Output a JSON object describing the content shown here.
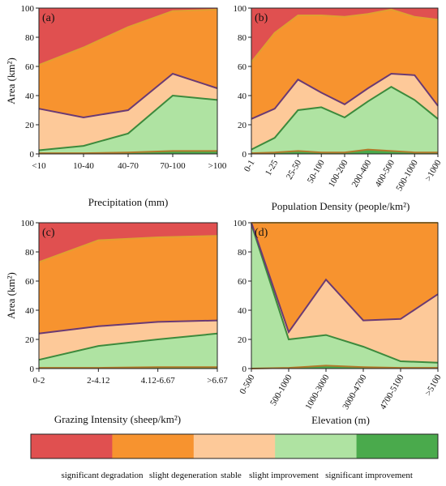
{
  "palette": {
    "significant degradation": "#e05050",
    "slight degeneration": "#f7932f",
    "stable": "#fdc999",
    "slight improvement": "#afe3a2",
    "significant improvement": "#4aaa4c",
    "line_deg": "#e0a030",
    "line_stable_top": "#6a3a74",
    "line_improve_top": "#3c8a3c",
    "line_sig_top": "#b07a2a"
  },
  "legend": {
    "items": [
      "significant degradation",
      "slight degeneration",
      "stable",
      "slight improvement",
      "significant improvement"
    ]
  },
  "chart_data": [
    {
      "type": "area",
      "panel_label": "(a)",
      "xlabel": "Precipitation (mm)",
      "ylabel": "Area (km²)",
      "ylim": [
        0,
        100
      ],
      "yticks": [
        0,
        20,
        40,
        60,
        80,
        100
      ],
      "categories": [
        "<10",
        "10-40",
        "40-70",
        "70-100",
        ">100"
      ],
      "series": [
        {
          "name": "significant improvement",
          "values": [
            0.5,
            0.5,
            1,
            2,
            2
          ]
        },
        {
          "name": "slight improvement",
          "values": [
            2.5,
            5.5,
            14,
            40,
            37
          ]
        },
        {
          "name": "stable",
          "values": [
            31,
            25,
            30,
            55,
            45
          ]
        },
        {
          "name": "slight degeneration",
          "values": [
            61,
            73,
            87,
            98,
            99
          ]
        },
        {
          "name": "significant degradation",
          "values": [
            100,
            100,
            100,
            100,
            100
          ]
        }
      ]
    },
    {
      "type": "area",
      "panel_label": "(b)",
      "xlabel": "Population Density (people/km²)",
      "ylabel": "",
      "ylim": [
        0,
        100
      ],
      "yticks": [
        0,
        20,
        40,
        60,
        80,
        100
      ],
      "categories": [
        "0-1",
        "1-25",
        "25-50",
        "50-100",
        "100-200",
        "200-400",
        "400-500",
        "500-1000",
        ">1000"
      ],
      "series": [
        {
          "name": "significant improvement",
          "values": [
            0.5,
            1,
            2,
            1,
            1,
            3,
            2,
            1,
            1
          ]
        },
        {
          "name": "slight improvement",
          "values": [
            3,
            11,
            30,
            32,
            25,
            36,
            46,
            37,
            24
          ]
        },
        {
          "name": "stable",
          "values": [
            24,
            31,
            51,
            42,
            34,
            45,
            55,
            54,
            33
          ]
        },
        {
          "name": "slight degeneration",
          "values": [
            63,
            83,
            95,
            95,
            94,
            96,
            99,
            94,
            92
          ]
        },
        {
          "name": "significant degradation",
          "values": [
            100,
            100,
            100,
            100,
            100,
            100,
            100,
            100,
            100
          ]
        }
      ]
    },
    {
      "type": "area",
      "panel_label": "(c)",
      "xlabel": "Grazing Intensity (sheep/km²)",
      "ylabel": "Area (km²)",
      "ylim": [
        0,
        100
      ],
      "yticks": [
        0,
        20,
        40,
        60,
        80,
        100
      ],
      "categories": [
        "0-2",
        "2-4.12",
        "4.12-6.67",
        ">6.67"
      ],
      "series": [
        {
          "name": "significant improvement",
          "values": [
            0.5,
            0.5,
            1,
            1
          ]
        },
        {
          "name": "slight improvement",
          "values": [
            6,
            15.5,
            20,
            24
          ]
        },
        {
          "name": "stable",
          "values": [
            24,
            29,
            32,
            33
          ]
        },
        {
          "name": "slight degeneration",
          "values": [
            73,
            88,
            90,
            91
          ]
        },
        {
          "name": "significant degradation",
          "values": [
            100,
            100,
            100,
            100
          ]
        }
      ]
    },
    {
      "type": "area",
      "panel_label": "(d)",
      "xlabel": "Elevation (m)",
      "ylabel": "",
      "ylim": [
        0,
        100
      ],
      "yticks": [
        0,
        20,
        40,
        60,
        80,
        100
      ],
      "categories": [
        "0-500",
        "500-1000",
        "1000-3000",
        "3000-4700",
        "4700-5100",
        ">5100"
      ],
      "series": [
        {
          "name": "significant improvement",
          "values": [
            0,
            0.5,
            2,
            1,
            0.5,
            0.5
          ]
        },
        {
          "name": "slight improvement",
          "values": [
            99,
            20,
            23,
            15,
            5,
            4
          ]
        },
        {
          "name": "stable",
          "values": [
            100,
            25,
            61,
            33,
            34,
            51
          ]
        },
        {
          "name": "slight degeneration",
          "values": [
            100,
            100,
            100,
            100,
            100,
            100
          ]
        },
        {
          "name": "significant degradation",
          "values": [
            100,
            100,
            100,
            100,
            100,
            100
          ]
        }
      ]
    }
  ]
}
